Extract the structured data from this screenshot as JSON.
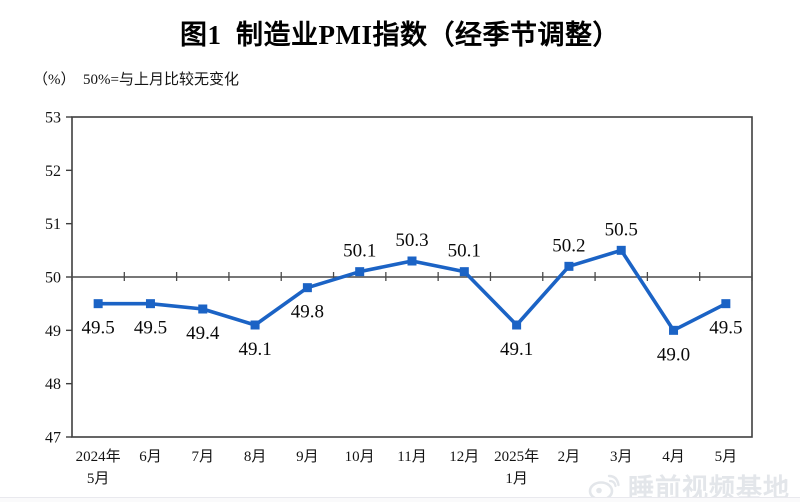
{
  "title": "图1  制造业PMI指数（经季节调整）",
  "subtitle": "（%）  50%=与上月比较无变化",
  "watermark": {
    "text": "睡前视频基地"
  },
  "chart_data": {
    "type": "line",
    "title": "图1 制造业PMI指数（经季节调整）",
    "ylabel": "(%)",
    "categories": [
      "2024年 5月",
      "6月",
      "7月",
      "8月",
      "9月",
      "10月",
      "11月",
      "12月",
      "2025年 1月",
      "2月",
      "3月",
      "4月",
      "5月"
    ],
    "values": [
      49.5,
      49.5,
      49.4,
      49.1,
      49.8,
      50.1,
      50.3,
      50.1,
      49.1,
      50.2,
      50.5,
      49.0,
      49.5
    ],
    "ylim": [
      47,
      53
    ],
    "yticks": [
      47,
      48,
      49,
      50,
      51,
      52,
      53
    ],
    "reference_line_y": 50,
    "reference_line_note": "50%=与上月比较无变化",
    "line_color": "#1b63c5",
    "axis_color": "#3f3f3f",
    "marker": "square",
    "label_decimals": 1,
    "grid": false,
    "legend_position": "none"
  }
}
